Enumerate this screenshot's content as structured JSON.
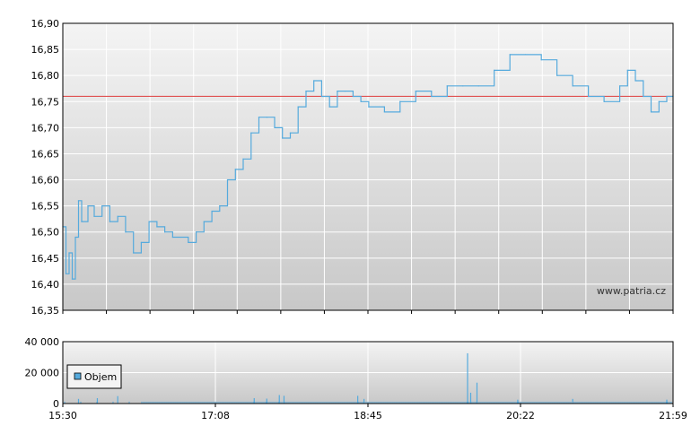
{
  "chart_data": [
    {
      "type": "line",
      "title": "",
      "xlabel": "",
      "ylabel": "",
      "ylim": [
        16.35,
        16.9
      ],
      "y_ticks": [
        "16,35",
        "16,40",
        "16,45",
        "16,50",
        "16,55",
        "16,60",
        "16,65",
        "16,70",
        "16,75",
        "16,80",
        "16,85",
        "16,90"
      ],
      "x_time_range": [
        "15:30",
        "21:59"
      ],
      "reference_line": {
        "value": 16.76,
        "color": "#e05050"
      },
      "watermark": "www.patria.cz",
      "grid": true,
      "line_color": "#55aadd",
      "series": [
        {
          "x": [
            "15:30",
            "15:32",
            "15:34",
            "15:36",
            "15:38",
            "15:40",
            "15:42",
            "15:46",
            "15:50",
            "15:55",
            "16:00",
            "16:05",
            "16:10",
            "16:15",
            "16:20",
            "16:25",
            "16:30",
            "16:35",
            "16:40",
            "16:45",
            "16:50",
            "16:55",
            "17:00",
            "17:05",
            "17:10",
            "17:15",
            "17:20",
            "17:25",
            "17:30",
            "17:35",
            "17:40",
            "17:45",
            "17:50",
            "17:55",
            "18:00",
            "18:05",
            "18:10",
            "18:15",
            "18:20",
            "18:25",
            "18:30",
            "18:35",
            "18:40",
            "18:45",
            "18:55",
            "19:05",
            "19:15",
            "19:25",
            "19:35",
            "19:45",
            "19:55",
            "20:05",
            "20:15",
            "20:25",
            "20:35",
            "20:45",
            "20:55",
            "21:05",
            "21:15",
            "21:25",
            "21:30",
            "21:35",
            "21:40",
            "21:45",
            "21:50",
            "21:55",
            "21:59"
          ],
          "values": [
            16.51,
            16.42,
            16.46,
            16.41,
            16.49,
            16.56,
            16.52,
            16.55,
            16.53,
            16.55,
            16.52,
            16.53,
            16.5,
            16.46,
            16.48,
            16.52,
            16.51,
            16.5,
            16.49,
            16.49,
            16.48,
            16.5,
            16.52,
            16.54,
            16.55,
            16.6,
            16.62,
            16.64,
            16.69,
            16.72,
            16.72,
            16.7,
            16.68,
            16.69,
            16.74,
            16.77,
            16.79,
            16.76,
            16.74,
            16.77,
            16.77,
            16.76,
            16.75,
            16.74,
            16.73,
            16.75,
            16.77,
            16.76,
            16.78,
            16.78,
            16.78,
            16.81,
            16.84,
            16.84,
            16.83,
            16.8,
            16.78,
            16.76,
            16.75,
            16.78,
            16.81,
            16.79,
            16.76,
            16.73,
            16.75,
            16.76,
            16.76
          ]
        }
      ]
    },
    {
      "type": "bar",
      "title": "",
      "xlabel": "",
      "ylabel": "",
      "ylim": [
        0,
        40000
      ],
      "y_ticks": [
        "0",
        "20 000",
        "40 000"
      ],
      "x_tick_labels": [
        "15:30",
        "17:08",
        "18:45",
        "20:22",
        "21:59"
      ],
      "legend": {
        "label": "Objem",
        "position": "left"
      },
      "bar_color": "#55aadd",
      "base_level": 1200,
      "spikes": [
        {
          "x": "15:40",
          "value": 3000
        },
        {
          "x": "15:52",
          "value": 3500
        },
        {
          "x": "16:05",
          "value": 4800
        },
        {
          "x": "17:32",
          "value": 3500
        },
        {
          "x": "17:40",
          "value": 3200
        },
        {
          "x": "17:48",
          "value": 5500
        },
        {
          "x": "17:51",
          "value": 5000
        },
        {
          "x": "18:38",
          "value": 5000
        },
        {
          "x": "18:42",
          "value": 3000
        },
        {
          "x": "19:48",
          "value": 32500
        },
        {
          "x": "19:50",
          "value": 7000
        },
        {
          "x": "19:54",
          "value": 13500
        },
        {
          "x": "20:20",
          "value": 2500
        },
        {
          "x": "20:55",
          "value": 3000
        },
        {
          "x": "21:55",
          "value": 2500
        }
      ]
    }
  ]
}
